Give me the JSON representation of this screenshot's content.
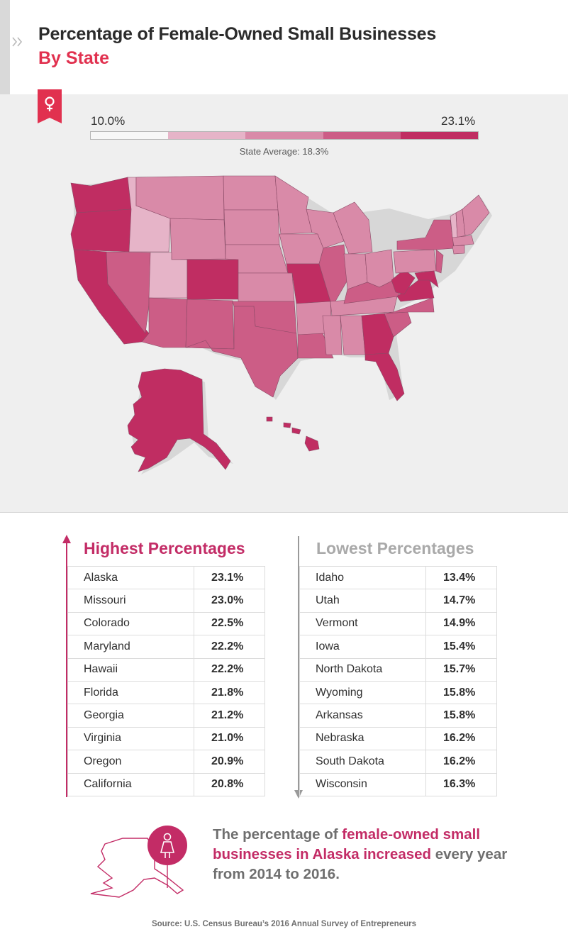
{
  "header": {
    "title": "Percentage of Female-Owned Small Businesses",
    "subtitle": "By State"
  },
  "legend": {
    "min": "10.0%",
    "max": "23.1%",
    "average": "State Average: 18.3%",
    "colors": [
      "#f7f7f7",
      "#e6b4c8",
      "#d98aa8",
      "#cc5d86",
      "#c02d62"
    ]
  },
  "chart_data": {
    "type": "table",
    "tables": [
      {
        "title": "Highest Percentages",
        "rows": [
          [
            "Alaska",
            "23.1%"
          ],
          [
            "Missouri",
            "23.0%"
          ],
          [
            "Colorado",
            "22.5%"
          ],
          [
            "Maryland",
            "22.2%"
          ],
          [
            "Hawaii",
            "22.2%"
          ],
          [
            "Florida",
            "21.8%"
          ],
          [
            "Georgia",
            "21.2%"
          ],
          [
            "Virginia",
            "21.0%"
          ],
          [
            "Oregon",
            "20.9%"
          ],
          [
            "California",
            "20.8%"
          ]
        ]
      },
      {
        "title": "Lowest Percentages",
        "rows": [
          [
            "Idaho",
            "13.4%"
          ],
          [
            "Utah",
            "14.7%"
          ],
          [
            "Vermont",
            "14.9%"
          ],
          [
            "Iowa",
            "15.4%"
          ],
          [
            "North Dakota",
            "15.7%"
          ],
          [
            "Wyoming",
            "15.8%"
          ],
          [
            "Arkansas",
            "15.8%"
          ],
          [
            "Nebraska",
            "16.2%"
          ],
          [
            "South Dakota",
            "16.2%"
          ],
          [
            "Wisconsin",
            "16.3%"
          ]
        ]
      }
    ]
  },
  "note": {
    "part1": "The percentage of ",
    "highlight": "female-owned small businesses in Alaska increased",
    "part2": " every year from 2014 to 2016."
  },
  "source": "Source:  U.S. Census Bureau’s 2016 Annual Survey of Entrepreneurs",
  "icons": [
    "chevron-right-icon",
    "female-symbol-icon",
    "woman-icon"
  ]
}
